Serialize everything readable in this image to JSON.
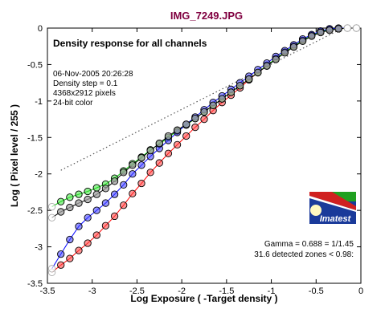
{
  "image_title": "IMG_7249.JPG",
  "panel_title": "Density response for all channels",
  "info": {
    "datetime": "06-Nov-2005 20:26:28",
    "density_step": "Density step = 0.1",
    "pixels": "4368x2912 pixels",
    "color": "24-bit color"
  },
  "stats": {
    "gamma": "Gamma = 0.688 = 1/1.45",
    "zones": "31.6 detected zones < 0.98:"
  },
  "logo": {
    "text": "Imatest"
  },
  "colors": {
    "title": "#800040",
    "red": "#ff2020",
    "green": "#20e020",
    "blue": "#2020ff",
    "gray": "#a0a0a0",
    "logo_blue": "#1a3a9a",
    "logo_red": "#d02020",
    "logo_green": "#20a020",
    "logo_sun": "#fff8c0"
  },
  "chart_data": {
    "type": "line",
    "title": "",
    "xlabel": "Log Exposure ( -Target density )",
    "ylabel": "Log ( Pixel level / 255 )",
    "xlim": [
      -3.5,
      0
    ],
    "ylim": [
      -3.5,
      0
    ],
    "x_ticks": [
      "-3.5",
      "-3",
      "-2.5",
      "-2",
      "-1.5",
      "-1",
      "-0.5",
      "0"
    ],
    "y_ticks": [
      "0",
      "-0.5",
      "-1",
      "-1.5",
      "-2",
      "-2.5",
      "-3",
      "-3.5"
    ],
    "grid": false,
    "x": [
      -3.45,
      -3.35,
      -3.25,
      -3.15,
      -3.05,
      -2.95,
      -2.85,
      -2.75,
      -2.65,
      -2.55,
      -2.45,
      -2.35,
      -2.25,
      -2.15,
      -2.05,
      -1.95,
      -1.85,
      -1.75,
      -1.65,
      -1.55,
      -1.45,
      -1.35,
      -1.25,
      -1.15,
      -1.05,
      -0.95,
      -0.85,
      -0.75,
      -0.65,
      -0.55,
      -0.45,
      -0.35,
      -0.25,
      -0.15,
      -0.05
    ],
    "series": [
      {
        "color": "red",
        "values": [
          -3.35,
          -3.25,
          -3.16,
          -3.05,
          -2.95,
          -2.84,
          -2.71,
          -2.58,
          -2.43,
          -2.27,
          -2.13,
          -1.98,
          -1.85,
          -1.72,
          -1.6,
          -1.48,
          -1.36,
          -1.25,
          -1.13,
          -1.02,
          -0.92,
          -0.82,
          -0.71,
          -0.61,
          -0.52,
          -0.42,
          -0.33,
          -0.25,
          -0.17,
          -0.1,
          -0.05,
          -0.02,
          -0.01,
          0.0,
          0.0
        ]
      },
      {
        "color": "green",
        "values": [
          -2.45,
          -2.38,
          -2.32,
          -2.28,
          -2.24,
          -2.19,
          -2.14,
          -2.06,
          -1.96,
          -1.86,
          -1.77,
          -1.67,
          -1.59,
          -1.5,
          -1.41,
          -1.33,
          -1.24,
          -1.15,
          -1.06,
          -0.97,
          -0.88,
          -0.79,
          -0.7,
          -0.61,
          -0.51,
          -0.42,
          -0.33,
          -0.25,
          -0.17,
          -0.1,
          -0.05,
          -0.02,
          -0.01,
          0.0,
          0.0
        ]
      },
      {
        "color": "blue",
        "values": [
          -3.3,
          -3.1,
          -2.9,
          -2.72,
          -2.6,
          -2.5,
          -2.4,
          -2.28,
          -2.15,
          -2.0,
          -1.88,
          -1.76,
          -1.65,
          -1.54,
          -1.43,
          -1.32,
          -1.22,
          -1.12,
          -1.02,
          -0.93,
          -0.84,
          -0.75,
          -0.66,
          -0.57,
          -0.48,
          -0.39,
          -0.31,
          -0.23,
          -0.15,
          -0.09,
          -0.04,
          -0.01,
          0.0,
          0.0,
          0.0
        ]
      },
      {
        "color": "gray",
        "values": [
          -2.6,
          -2.52,
          -2.46,
          -2.4,
          -2.35,
          -2.28,
          -2.2,
          -2.1,
          -1.98,
          -1.88,
          -1.78,
          -1.68,
          -1.58,
          -1.48,
          -1.4,
          -1.32,
          -1.24,
          -1.15,
          -1.06,
          -0.97,
          -0.88,
          -0.79,
          -0.7,
          -0.61,
          -0.52,
          -0.43,
          -0.34,
          -0.26,
          -0.18,
          -0.11,
          -0.06,
          -0.03,
          -0.01,
          0.0,
          0.0
        ]
      }
    ],
    "gamma_fit_line": {
      "x": [
        -3.35,
        -0.2
      ],
      "y": [
        -1.95,
        0.0
      ],
      "style": "dotted"
    }
  }
}
